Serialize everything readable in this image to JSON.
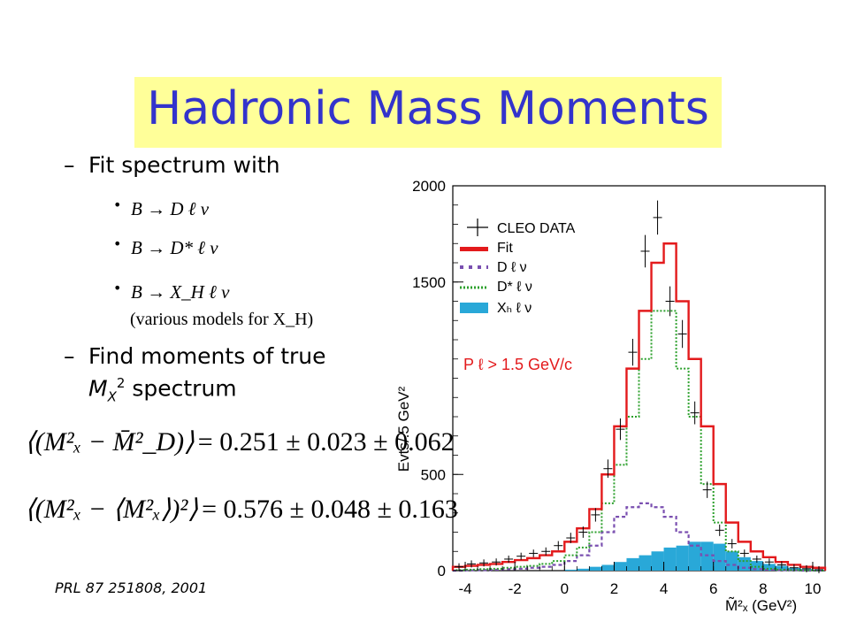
{
  "slide": {
    "title": "Hadronic Mass Moments",
    "bullets": [
      {
        "dash": "–",
        "text_main": "Fit spectrum with"
      },
      {
        "dash": "–",
        "text_main": "Find moments of true",
        "text_m": "M",
        "text_sub": "X",
        "text_sup": "2",
        "text_rest": " spectrum"
      }
    ],
    "sub_bullets": [
      {
        "marker": "•",
        "text": "B → D ℓ ν"
      },
      {
        "marker": "•",
        "text": "B → D* ℓ ν"
      },
      {
        "marker": "•",
        "text": "B → X_H ℓ ν"
      }
    ],
    "note": "(various models for X_H)",
    "equations": [
      {
        "lhs": "⟨(M²ₓ − M̄²_D)⟩",
        "rhs": "= 0.251 ± 0.023 ± 0.062"
      },
      {
        "lhs": "⟨(M²ₓ − ⟨M²ₓ⟩)²⟩",
        "rhs": "= 0.576 ± 0.048 ± 0.163"
      }
    ],
    "reference": "PRL 87 251808, 2001"
  },
  "colors": {
    "title": "#3333cc",
    "title_bg": "#ffff99",
    "fit": "#e31a1c",
    "d_lnu": "#7a4fb0",
    "dstar_lnu": "#2ca02c",
    "xh_lnu": "#29a8d8",
    "cut_label": "#e31a1c"
  },
  "chart_data": {
    "type": "bar",
    "xlabel": "M̃²ₓ (GeV²)",
    "ylabel": "Evts/.5 GeV²",
    "xlim": [
      -4.5,
      10.5
    ],
    "ylim": [
      0,
      2000
    ],
    "x_ticks": [
      "-4",
      "-2",
      "0",
      "2",
      "4",
      "6",
      "8",
      "10"
    ],
    "y_ticks": [
      "0",
      "500",
      "1500",
      "2000"
    ],
    "cut_label": "P ℓ > 1.5 GeV/c",
    "legend": [
      "CLEO DATA",
      "Fit",
      "D ℓ ν",
      "D* ℓ ν",
      "Xₕ ℓ ν"
    ],
    "legend_position": "top-left",
    "bin_edges": [
      -4.5,
      -4,
      -3.5,
      -3,
      -2.5,
      -2,
      -1.5,
      -1,
      -0.5,
      0,
      0.5,
      1,
      1.5,
      2,
      2.5,
      3,
      3.5,
      4,
      4.5,
      5,
      5.5,
      6,
      6.5,
      7,
      7.5,
      8,
      8.5,
      9,
      9.5,
      10,
      10.5
    ],
    "series": [
      {
        "name": "Fit",
        "values": [
          20,
          25,
          30,
          35,
          45,
          55,
          65,
          80,
          100,
          150,
          220,
          320,
          500,
          750,
          1050,
          1350,
          1600,
          1700,
          1400,
          1100,
          750,
          450,
          250,
          150,
          100,
          70,
          45,
          30,
          20,
          15
        ]
      },
      {
        "name": "D ℓ ν",
        "values": [
          0,
          2,
          3,
          5,
          8,
          10,
          15,
          20,
          30,
          50,
          80,
          130,
          200,
          280,
          330,
          350,
          330,
          280,
          200,
          130,
          80,
          50,
          30,
          15,
          8,
          5,
          3,
          2,
          0,
          0
        ]
      },
      {
        "name": "D* ℓ ν",
        "values": [
          3,
          5,
          8,
          10,
          15,
          20,
          25,
          35,
          50,
          80,
          120,
          200,
          350,
          550,
          800,
          1100,
          1350,
          1350,
          1050,
          800,
          450,
          250,
          100,
          50,
          20,
          10,
          5,
          3,
          2,
          0
        ]
      },
      {
        "name": "Xₕ ℓ ν",
        "values": [
          0,
          0,
          0,
          0,
          0,
          0,
          0,
          0,
          0,
          5,
          10,
          20,
          30,
          45,
          65,
          80,
          100,
          120,
          130,
          150,
          150,
          140,
          100,
          70,
          50,
          35,
          25,
          15,
          8,
          5
        ]
      },
      {
        "name": "CLEO DATA",
        "values": [
          20,
          35,
          40,
          45,
          60,
          75,
          90,
          100,
          130,
          170,
          200,
          290,
          530,
          735,
          1135,
          1660,
          1835,
          1400,
          1230,
          820,
          420,
          210,
          140,
          90,
          60,
          45,
          30,
          15,
          10,
          5
        ]
      }
    ]
  }
}
